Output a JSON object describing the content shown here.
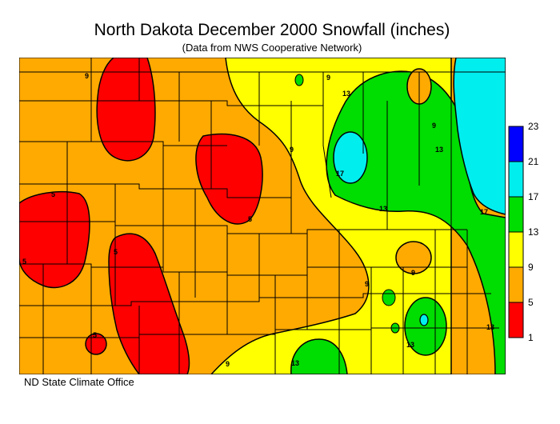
{
  "title": "North Dakota December 2000 Snowfall (inches)",
  "subtitle": "(Data from NWS Cooperative Network)",
  "credit": "ND State Climate Office",
  "legend": {
    "bins": [
      {
        "from": 1,
        "to": 5,
        "color": "#ff0000"
      },
      {
        "from": 5,
        "to": 9,
        "color": "#ffaa00"
      },
      {
        "from": 9,
        "to": 13,
        "color": "#ffff00"
      },
      {
        "from": 13,
        "to": 17,
        "color": "#00dd00"
      },
      {
        "from": 17,
        "to": 21,
        "color": "#00eeee"
      },
      {
        "from": 21,
        "to": 23,
        "color": "#0000ff"
      }
    ],
    "tick_labels": [
      "1",
      "5",
      "9",
      "13",
      "17",
      "21",
      "23"
    ]
  },
  "contour_labels": [
    "5",
    "9",
    "13",
    "17"
  ]
}
